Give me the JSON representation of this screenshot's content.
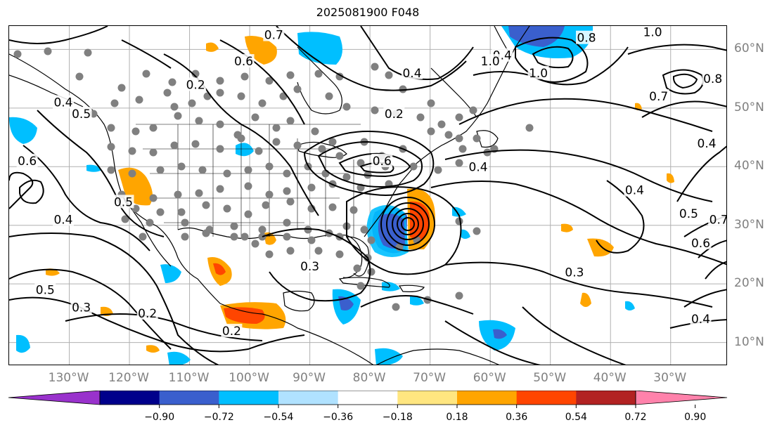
{
  "title": "2025081900 F048",
  "lon_labels": [
    {
      "text": "130°W",
      "lon": -130
    },
    {
      "text": "120°W",
      "lon": -120
    },
    {
      "text": "110°W",
      "lon": -110
    },
    {
      "text": "100°W",
      "lon": -100
    },
    {
      "text": "90°W",
      "lon": -90
    },
    {
      "text": "80°W",
      "lon": -80
    },
    {
      "text": "70°W",
      "lon": -70
    },
    {
      "text": "60°W",
      "lon": -60
    },
    {
      "text": "50°W",
      "lon": -50
    },
    {
      "text": "40°W",
      "lon": -40
    },
    {
      "text": "30°W",
      "lon": -30
    }
  ],
  "lat_labels": [
    {
      "text": "60°N",
      "lat": 60
    },
    {
      "text": "50°N",
      "lat": 50
    },
    {
      "text": "40°N",
      "lat": 40
    },
    {
      "text": "30°N",
      "lat": 30
    },
    {
      "text": "20°N",
      "lat": 20
    },
    {
      "text": "10°N",
      "lat": 10
    }
  ],
  "map_extent": {
    "lon_min": -140,
    "lon_max": -20.5,
    "lat_min": 6,
    "lat_max": 64
  },
  "colorbar": {
    "ticks": [
      "−0.90",
      "−0.72",
      "−0.54",
      "−0.36",
      "−0.18",
      "0.18",
      "0.36",
      "0.54",
      "0.72",
      "0.90"
    ],
    "colors": [
      "#9932cc",
      "#00008b",
      "#3a5fcd",
      "#00bfff",
      "#b0e2ff",
      "#ffffff",
      "#ffe680",
      "#ffa500",
      "#ff4500",
      "#b22222",
      "#ff82ab"
    ]
  },
  "contour_labels": [
    {
      "text": "0.7",
      "lon": -96,
      "lat": 62.5
    },
    {
      "text": "0.6",
      "lon": -101,
      "lat": 58
    },
    {
      "text": "0.2",
      "lon": -109,
      "lat": 54
    },
    {
      "text": "0.4",
      "lon": -73,
      "lat": 56
    },
    {
      "text": "0.5",
      "lon": -128,
      "lat": 49
    },
    {
      "text": "0.4",
      "lon": -131,
      "lat": 51
    },
    {
      "text": "0.2",
      "lon": -76,
      "lat": 49
    },
    {
      "text": "0.6",
      "lon": -78,
      "lat": 41
    },
    {
      "text": "0.4",
      "lon": -62,
      "lat": 40
    },
    {
      "text": "0.4",
      "lon": -58,
      "lat": 59
    },
    {
      "text": "1.0",
      "lon": -60,
      "lat": 58
    },
    {
      "text": "1.0",
      "lon": -52,
      "lat": 56
    },
    {
      "text": "1.0",
      "lon": -33,
      "lat": 63
    },
    {
      "text": "0.8",
      "lon": -44,
      "lat": 62
    },
    {
      "text": "0.7",
      "lon": -32,
      "lat": 52
    },
    {
      "text": "0.8",
      "lon": -23,
      "lat": 55
    },
    {
      "text": "0.4",
      "lon": -24,
      "lat": 44
    },
    {
      "text": "0.4",
      "lon": -36,
      "lat": 36
    },
    {
      "text": "0.5",
      "lon": -27,
      "lat": 32
    },
    {
      "text": "0.7",
      "lon": -22,
      "lat": 31
    },
    {
      "text": "0.6",
      "lon": -25,
      "lat": 27
    },
    {
      "text": "0.3",
      "lon": -46,
      "lat": 22
    },
    {
      "text": "0.3",
      "lon": -90,
      "lat": 23
    },
    {
      "text": "0.4",
      "lon": -131,
      "lat": 31
    },
    {
      "text": "0.5",
      "lon": -121,
      "lat": 34
    },
    {
      "text": "0.5",
      "lon": -134,
      "lat": 19
    },
    {
      "text": "0.3",
      "lon": -128,
      "lat": 16
    },
    {
      "text": "0.2",
      "lon": -117,
      "lat": 15
    },
    {
      "text": "0.2",
      "lon": -103,
      "lat": 12
    },
    {
      "text": "0.4",
      "lon": -25,
      "lat": 14
    },
    {
      "text": "0.6",
      "lon": -137,
      "lat": 41
    }
  ]
}
